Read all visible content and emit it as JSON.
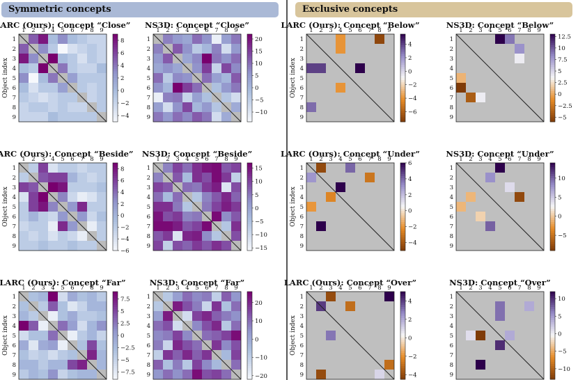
{
  "sections": {
    "left": "Symmetric concepts",
    "right": "Exclusive concepts"
  },
  "chart_data": [
    {
      "type": "heatmap",
      "variant": "symmetric",
      "title": "LARC (Ours): Concept “Close”",
      "ylabel": "Object index",
      "xticks": [
        "1",
        "2",
        "3",
        "4",
        "5",
        "6",
        "7",
        "8",
        "9"
      ],
      "yticks": [
        "1",
        "2",
        "3",
        "4",
        "5",
        "6",
        "7",
        "8",
        "9"
      ],
      "colormap": "purples",
      "vmin": -5,
      "vmax": 9,
      "cbar_ticks": [
        -4,
        -2,
        0,
        2,
        4,
        6,
        8
      ],
      "matrix": [
        [
          null,
          5,
          8,
          0,
          3,
          0,
          -1,
          -2,
          -2
        ],
        [
          5,
          null,
          3,
          -1,
          -5,
          -3,
          -2,
          -1,
          -2
        ],
        [
          8,
          3,
          null,
          9,
          0,
          -1,
          -3,
          -1,
          -2
        ],
        [
          0,
          -1,
          9,
          null,
          4,
          -1,
          -2,
          -2,
          0
        ],
        [
          3,
          -5,
          0,
          4,
          null,
          2,
          -1,
          -1,
          -1
        ],
        [
          0,
          -3,
          -1,
          -1,
          2,
          null,
          -1,
          -2,
          -1
        ],
        [
          -1,
          -2,
          -3,
          -2,
          -1,
          -1,
          null,
          -2,
          -1
        ],
        [
          -2,
          -1,
          -1,
          -2,
          -1,
          -2,
          -2,
          null,
          -1
        ],
        [
          -2,
          -2,
          -2,
          0,
          -1,
          -1,
          -1,
          -1,
          null
        ]
      ]
    },
    {
      "type": "heatmap",
      "variant": "symmetric",
      "title": "NS3D: Concept “Close”",
      "ylabel": "",
      "xticks": [
        "1",
        "2",
        "3",
        "4",
        "5",
        "6",
        "7",
        "8",
        "9"
      ],
      "yticks": [
        "1",
        "2",
        "3",
        "4",
        "5",
        "6",
        "7",
        "8",
        "9"
      ],
      "colormap": "purples",
      "vmin": -14,
      "vmax": 22,
      "cbar_ticks": [
        -10,
        -5,
        0,
        5,
        10,
        15,
        20
      ],
      "matrix": [
        [
          null,
          8,
          5,
          3,
          10,
          6,
          -12,
          4,
          9
        ],
        [
          8,
          null,
          12,
          6,
          -4,
          0,
          8,
          -8,
          5
        ],
        [
          5,
          12,
          null,
          3,
          7,
          22,
          9,
          6,
          10
        ],
        [
          3,
          6,
          3,
          null,
          6,
          15,
          -6,
          14,
          7
        ],
        [
          10,
          -4,
          7,
          6,
          null,
          10,
          4,
          0,
          12
        ],
        [
          6,
          0,
          22,
          15,
          10,
          null,
          -2,
          5,
          9
        ],
        [
          -12,
          8,
          9,
          -6,
          4,
          -2,
          null,
          -3,
          -8
        ],
        [
          4,
          -8,
          6,
          14,
          0,
          5,
          -3,
          null,
          2
        ],
        [
          9,
          5,
          10,
          7,
          12,
          9,
          -8,
          2,
          null
        ]
      ]
    },
    {
      "type": "heatmap",
      "variant": "symmetric",
      "title": "LARC (Ours): Concept “Beside”",
      "ylabel": "Object index",
      "xticks": [
        "1",
        "2",
        "3",
        "4",
        "5",
        "6",
        "7",
        "8",
        "9"
      ],
      "yticks": [
        "1",
        "2",
        "3",
        "4",
        "5",
        "6",
        "7",
        "8",
        "9"
      ],
      "colormap": "purples",
      "vmin": -6,
      "vmax": 9,
      "cbar_ticks": [
        -6,
        -4,
        -2,
        0,
        2,
        4,
        6,
        8
      ],
      "matrix": [
        [
          null,
          -2,
          6,
          -4,
          -2,
          -2,
          -3,
          -2,
          -2
        ],
        [
          -2,
          null,
          5,
          6,
          6,
          0,
          -2,
          -3,
          -2
        ],
        [
          6,
          5,
          null,
          9,
          8,
          -2,
          -2,
          -2,
          -1
        ],
        [
          -4,
          6,
          9,
          null,
          3,
          -3,
          -5,
          -4,
          -2
        ],
        [
          -2,
          6,
          8,
          3,
          null,
          2,
          7,
          -2,
          -2
        ],
        [
          -2,
          0,
          -2,
          -3,
          2,
          null,
          2,
          -3,
          -1
        ],
        [
          -3,
          -2,
          -2,
          -5,
          7,
          2,
          null,
          -5,
          -2
        ],
        [
          -2,
          -3,
          -2,
          -4,
          -2,
          -3,
          -5,
          null,
          -2
        ],
        [
          -2,
          -2,
          -1,
          -2,
          -2,
          -1,
          -2,
          -2,
          null
        ]
      ]
    },
    {
      "type": "heatmap",
      "variant": "symmetric",
      "title": "NS3D: Concept “Beside”",
      "ylabel": "",
      "xticks": [
        "1",
        "2",
        "3",
        "4",
        "5",
        "6",
        "7",
        "8",
        "9"
      ],
      "yticks": [
        "1",
        "2",
        "3",
        "4",
        "5",
        "6",
        "7",
        "8",
        "9"
      ],
      "colormap": "purples",
      "vmin": -16,
      "vmax": 17,
      "cbar_ticks": [
        -15,
        -10,
        -5,
        0,
        5,
        10,
        15
      ],
      "matrix": [
        [
          null,
          4,
          10,
          6,
          12,
          15,
          16,
          8,
          10
        ],
        [
          4,
          null,
          8,
          -4,
          12,
          9,
          16,
          11,
          -8
        ],
        [
          10,
          8,
          null,
          6,
          5,
          11,
          14,
          -12,
          9
        ],
        [
          6,
          -4,
          6,
          null,
          -6,
          4,
          8,
          13,
          7
        ],
        [
          12,
          12,
          5,
          -6,
          null,
          5,
          10,
          14,
          11
        ],
        [
          15,
          9,
          11,
          4,
          5,
          null,
          16,
          3,
          8
        ],
        [
          16,
          16,
          14,
          8,
          10,
          16,
          null,
          -6,
          12
        ],
        [
          8,
          11,
          -12,
          13,
          14,
          3,
          -6,
          null,
          9
        ],
        [
          10,
          -8,
          9,
          7,
          11,
          8,
          12,
          9,
          null
        ]
      ]
    },
    {
      "type": "heatmap",
      "variant": "symmetric",
      "title": "LARC (Ours): Concept “Far”",
      "ylabel": "Object index",
      "xticks": [
        "1",
        "2",
        "3",
        "4",
        "5",
        "6",
        "7",
        "8",
        "9"
      ],
      "yticks": [
        "1",
        "2",
        "3",
        "4",
        "5",
        "6",
        "7",
        "8",
        "9"
      ],
      "colormap": "purples",
      "vmin": -9,
      "vmax": 9,
      "cbar_ticks": [
        -7.5,
        -5.0,
        -2.5,
        0.0,
        2.5,
        5.0,
        7.5
      ],
      "matrix": [
        [
          null,
          -3,
          -2,
          9,
          -6,
          -1,
          -3,
          -2,
          -4
        ],
        [
          -3,
          null,
          -4,
          4,
          -3,
          -7,
          -5,
          -2,
          -2
        ],
        [
          -2,
          -4,
          null,
          -8,
          -3,
          -1,
          -4,
          -4,
          -3
        ],
        [
          9,
          4,
          -8,
          null,
          3,
          0,
          -6,
          -2,
          1
        ],
        [
          -6,
          -3,
          -3,
          3,
          null,
          -8,
          -4,
          -2,
          -5
        ],
        [
          -1,
          -7,
          -1,
          0,
          -8,
          null,
          -3,
          5,
          -3
        ],
        [
          -3,
          -5,
          -4,
          -6,
          -4,
          -3,
          null,
          7,
          -2
        ],
        [
          -2,
          -2,
          -4,
          -2,
          -2,
          5,
          7,
          null,
          -2
        ],
        [
          -4,
          -2,
          -3,
          1,
          -5,
          -3,
          -2,
          -2,
          null
        ]
      ]
    },
    {
      "type": "heatmap",
      "variant": "symmetric",
      "title": "NS3D: Concept “Far”",
      "ylabel": "",
      "xticks": [
        "1",
        "2",
        "3",
        "4",
        "5",
        "6",
        "7",
        "8",
        "9"
      ],
      "yticks": [
        "1",
        "2",
        "3",
        "4",
        "5",
        "6",
        "7",
        "8",
        "9"
      ],
      "colormap": "purples",
      "vmin": -22,
      "vmax": 26,
      "cbar_ticks": [
        -20,
        -10,
        0,
        10,
        20
      ],
      "matrix": [
        [
          null,
          -8,
          2,
          10,
          6,
          8,
          -10,
          12,
          4
        ],
        [
          -8,
          null,
          22,
          14,
          8,
          -12,
          18,
          -6,
          10
        ],
        [
          2,
          22,
          null,
          -14,
          16,
          20,
          12,
          8,
          5
        ],
        [
          10,
          14,
          -14,
          null,
          6,
          14,
          20,
          -8,
          10
        ],
        [
          6,
          8,
          16,
          6,
          null,
          10,
          12,
          16,
          24
        ],
        [
          8,
          -12,
          20,
          14,
          10,
          null,
          18,
          6,
          14
        ],
        [
          -10,
          18,
          12,
          20,
          12,
          18,
          null,
          -4,
          16
        ],
        [
          12,
          -6,
          8,
          -8,
          16,
          6,
          -4,
          null,
          10
        ],
        [
          4,
          10,
          5,
          10,
          24,
          14,
          16,
          10,
          null
        ]
      ]
    },
    {
      "type": "heatmap",
      "variant": "exclusive",
      "title": "LARC (Ours): Concept “Below”",
      "ylabel": "Object index",
      "xticks": [
        "1",
        "2",
        "3",
        "4",
        "5",
        "6",
        "7",
        "8",
        "9"
      ],
      "yticks": [
        "1",
        "2",
        "3",
        "4",
        "5",
        "6",
        "7",
        "8",
        "9"
      ],
      "colormap": "orange-purple",
      "vmin": -7.5,
      "vmax": 5.5,
      "cbar_ticks": [
        -6,
        -4,
        -2,
        0,
        2,
        4
      ],
      "cells": [
        [
          1,
          4,
          -4
        ],
        [
          1,
          8,
          -7
        ],
        [
          2,
          4,
          -4
        ],
        [
          4,
          1,
          4
        ],
        [
          4,
          2,
          4
        ],
        [
          4,
          6,
          6
        ],
        [
          6,
          4,
          -4
        ],
        [
          8,
          1,
          3
        ]
      ]
    },
    {
      "type": "heatmap",
      "variant": "exclusive",
      "title": "NS3D: Concept “Below”",
      "ylabel": "",
      "xticks": [
        "1",
        "2",
        "3",
        "4",
        "5",
        "6",
        "7",
        "8",
        "9"
      ],
      "yticks": [
        "1",
        "2",
        "3",
        "4",
        "5",
        "6",
        "7",
        "8",
        "9"
      ],
      "colormap": "orange-purple",
      "vmin": -6,
      "vmax": 13,
      "cbar_ticks": [
        -5.0,
        -2.5,
        0.0,
        2.5,
        5.0,
        7.5,
        10.0,
        12.5
      ],
      "cells": [
        [
          1,
          5,
          13
        ],
        [
          1,
          6,
          9
        ],
        [
          2,
          7,
          8
        ],
        [
          3,
          7,
          4
        ],
        [
          5,
          1,
          0.5
        ],
        [
          6,
          1,
          -6
        ],
        [
          7,
          2,
          -4
        ],
        [
          7,
          3,
          4
        ]
      ]
    },
    {
      "type": "heatmap",
      "variant": "exclusive",
      "title": "LARC (Ours): Concept “Under”",
      "ylabel": "Object index",
      "xticks": [
        "1",
        "2",
        "3",
        "4",
        "5",
        "6",
        "7",
        "8",
        "9"
      ],
      "yticks": [
        "1",
        "2",
        "3",
        "4",
        "5",
        "6",
        "7",
        "8",
        "9"
      ],
      "colormap": "orange-purple",
      "vmin": -5,
      "vmax": 6,
      "cbar_ticks": [
        -4,
        -2,
        0,
        2,
        4,
        6
      ],
      "cells": [
        [
          1,
          2,
          -4.5
        ],
        [
          1,
          5,
          4
        ],
        [
          2,
          1,
          3
        ],
        [
          2,
          7,
          -3
        ],
        [
          3,
          4,
          6
        ],
        [
          4,
          3,
          -2.5
        ],
        [
          5,
          1,
          -2
        ],
        [
          7,
          2,
          6
        ]
      ]
    },
    {
      "type": "heatmap",
      "variant": "exclusive",
      "title": "NS3D: Concept “Under”",
      "ylabel": "",
      "xticks": [
        "1",
        "2",
        "3",
        "4",
        "5",
        "6",
        "7",
        "8",
        "9"
      ],
      "yticks": [
        "1",
        "2",
        "3",
        "4",
        "5",
        "6",
        "7",
        "8",
        "9"
      ],
      "colormap": "orange-purple",
      "vmin": -9,
      "vmax": 14,
      "cbar_ticks": [
        -5,
        0,
        5,
        10
      ],
      "cells": [
        [
          1,
          5,
          14
        ],
        [
          2,
          4,
          8
        ],
        [
          3,
          6,
          4
        ],
        [
          4,
          2,
          -1
        ],
        [
          4,
          7,
          -8
        ],
        [
          5,
          1,
          -1
        ],
        [
          6,
          3,
          0.5
        ],
        [
          7,
          4,
          10
        ]
      ]
    },
    {
      "type": "heatmap",
      "variant": "exclusive",
      "title": "LARC (Ours): Concept “Over”",
      "ylabel": "Object index",
      "xticks": [
        "1",
        "2",
        "3",
        "4",
        "5",
        "6",
        "7",
        "8",
        "9"
      ],
      "yticks": [
        "1",
        "2",
        "3",
        "4",
        "5",
        "6",
        "7",
        "8",
        "9"
      ],
      "colormap": "orange-purple",
      "vmin": -4.5,
      "vmax": 5,
      "cbar_ticks": [
        -4,
        -2,
        0,
        2,
        4
      ],
      "cells": [
        [
          1,
          3,
          -4
        ],
        [
          1,
          9,
          5
        ],
        [
          2,
          2,
          4
        ],
        [
          2,
          5,
          -3
        ],
        [
          5,
          3,
          3
        ],
        [
          8,
          9,
          -3
        ],
        [
          9,
          2,
          -4
        ],
        [
          9,
          8,
          1
        ]
      ]
    },
    {
      "type": "heatmap",
      "variant": "exclusive",
      "title": "NS3D: Concept “Over”",
      "ylabel": "",
      "xticks": [
        "1",
        "2",
        "3",
        "4",
        "5",
        "6",
        "7",
        "8",
        "9"
      ],
      "yticks": [
        "1",
        "2",
        "3",
        "4",
        "5",
        "6",
        "7",
        "8",
        "9"
      ],
      "colormap": "orange-purple",
      "vmin": -13,
      "vmax": 12,
      "cbar_ticks": [
        -10,
        -5,
        0,
        5,
        10
      ],
      "cells": [
        [
          2,
          5,
          7
        ],
        [
          2,
          8,
          4
        ],
        [
          3,
          5,
          7
        ],
        [
          5,
          2,
          1
        ],
        [
          5,
          3,
          -13
        ],
        [
          5,
          6,
          4
        ],
        [
          6,
          5,
          10
        ],
        [
          8,
          3,
          12
        ]
      ]
    }
  ]
}
